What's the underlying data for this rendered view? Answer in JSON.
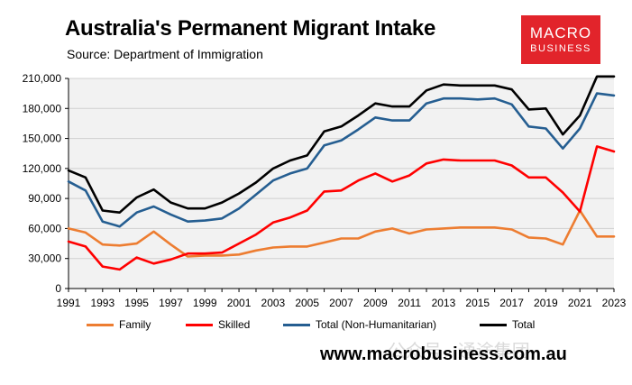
{
  "header": {
    "title": "Australia's Permanent Migrant Intake",
    "subtitle": "Source: Department of Immigration"
  },
  "logo": {
    "line1": "MACRO",
    "line2": "BUSINESS"
  },
  "footer": {
    "website": "www.macrobusiness.com.au",
    "watermark": "公众号 · 通途集团"
  },
  "colors": {
    "family": "#ed7d31",
    "skilled": "#ff0000",
    "total_non_humanitarian": "#255e91",
    "total": "#000000",
    "plot_bg": "#f2f2f2",
    "logo_bg": "#e2242b"
  },
  "chart_data": {
    "type": "line",
    "title": "Australia's Permanent Migrant Intake",
    "xlabel": "",
    "ylabel": "",
    "xlim": [
      1991,
      2023
    ],
    "ylim": [
      0,
      210000
    ],
    "x_ticks": [
      "1991",
      "1993",
      "1995",
      "1997",
      "1999",
      "2001",
      "2003",
      "2005",
      "2007",
      "2009",
      "2011",
      "2013",
      "2015",
      "2017",
      "2019",
      "2021",
      "2023"
    ],
    "y_ticks": [
      "0",
      "30,000",
      "60,000",
      "90,000",
      "120,000",
      "150,000",
      "180,000",
      "210,000"
    ],
    "grid": "horizontal",
    "legend_position": "bottom",
    "x": [
      1991,
      1992,
      1993,
      1994,
      1995,
      1996,
      1997,
      1998,
      1999,
      2000,
      2001,
      2002,
      2003,
      2004,
      2005,
      2006,
      2007,
      2008,
      2009,
      2010,
      2011,
      2012,
      2013,
      2014,
      2015,
      2016,
      2017,
      2018,
      2019,
      2020,
      2021,
      2022,
      2023
    ],
    "series": [
      {
        "name": "Family",
        "color": "#ed7d31",
        "values": [
          60000,
          56000,
          44000,
          43000,
          45000,
          57000,
          44000,
          32000,
          33000,
          33000,
          34000,
          38000,
          41000,
          42000,
          42000,
          46000,
          50000,
          50000,
          57000,
          60000,
          55000,
          59000,
          60000,
          61000,
          61000,
          61000,
          59000,
          51000,
          50000,
          44000,
          78000,
          52000,
          52000
        ]
      },
      {
        "name": "Skilled",
        "color": "#ff0000",
        "values": [
          47000,
          42000,
          22000,
          19000,
          31000,
          25000,
          29000,
          35000,
          35000,
          36000,
          45000,
          54000,
          66000,
          71000,
          78000,
          97000,
          98000,
          108000,
          115000,
          107000,
          113000,
          125000,
          129000,
          128000,
          128000,
          128000,
          123000,
          111000,
          111000,
          96000,
          77000,
          142000,
          137000
        ]
      },
      {
        "name": "Total (Non-Humanitarian)",
        "color": "#255e91",
        "values": [
          107000,
          98000,
          67000,
          62000,
          76000,
          82000,
          74000,
          67000,
          68000,
          70000,
          80000,
          94000,
          108000,
          115000,
          120000,
          143000,
          148000,
          159000,
          171000,
          168000,
          168000,
          185000,
          190000,
          190000,
          189000,
          190000,
          184000,
          162000,
          160000,
          140000,
          160000,
          195000,
          193000
        ]
      },
      {
        "name": "Total",
        "color": "#000000",
        "values": [
          118000,
          111000,
          78000,
          76000,
          91000,
          99000,
          86000,
          80000,
          80000,
          86000,
          95000,
          106000,
          120000,
          128000,
          133000,
          157000,
          162000,
          173000,
          185000,
          182000,
          182000,
          198000,
          204000,
          203000,
          203000,
          203000,
          199000,
          179000,
          180000,
          154000,
          173000,
          212000,
          212000
        ]
      }
    ]
  }
}
